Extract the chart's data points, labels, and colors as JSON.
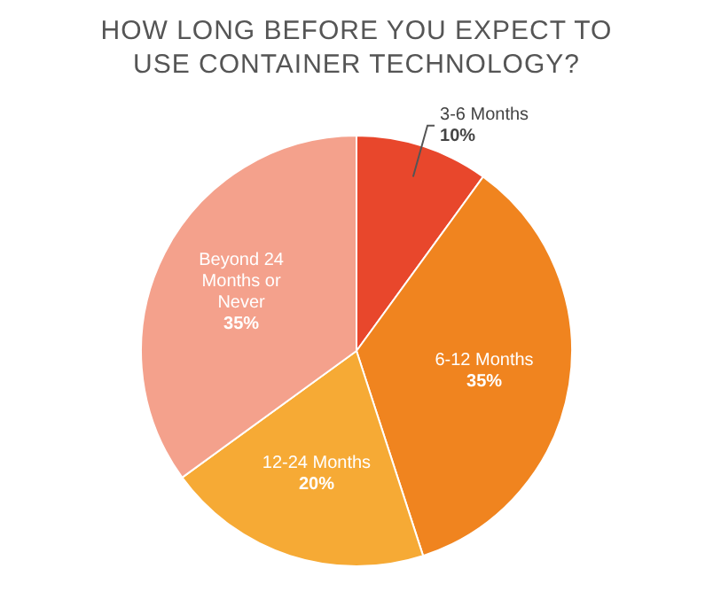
{
  "chart_data": {
    "type": "pie",
    "title": "HOW LONG BEFORE YOU EXPECT TO USE CONTAINER TECHNOLOGY?",
    "categories": [
      "3-6 Months",
      "6-12 Months",
      "12-24 Months",
      "Beyond 24 Months or Never"
    ],
    "values": [
      10,
      35,
      20,
      35
    ],
    "value_labels": [
      "10%",
      "35%",
      "20%",
      "35%"
    ],
    "colors": [
      "#e8472c",
      "#f0841f",
      "#f6aa35",
      "#f4a18c"
    ]
  }
}
